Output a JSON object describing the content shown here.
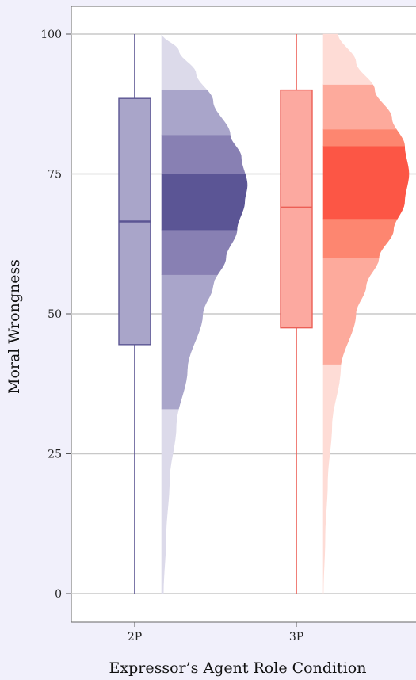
{
  "chart_data": {
    "type": "raincloud",
    "title": "",
    "xlabel": "Expressor’s Agent Role Condition",
    "ylabel": "Moral Wrongness",
    "ylim": [
      0,
      100
    ],
    "yticks": [
      0,
      25,
      50,
      75,
      100
    ],
    "grid": "horizontal",
    "legend": "none",
    "categories": [
      "2P",
      "3P"
    ],
    "series": [
      {
        "category": "2P",
        "colors": {
          "box_fill": "#a9a5c9",
          "box_stroke": "#5b5593",
          "band_outer": "#dcdaea",
          "band_mid": "#a9a5ca",
          "band_inner": "#8880b3",
          "band_core": "#5b5595"
        },
        "box": {
          "min": 0,
          "q1": 44.5,
          "median": 66.5,
          "q3": 88.5,
          "max": 100
        },
        "density": [
          [
            0,
            0.02
          ],
          [
            10,
            0.05
          ],
          [
            20,
            0.09
          ],
          [
            30,
            0.17
          ],
          [
            40,
            0.3
          ],
          [
            50,
            0.48
          ],
          [
            55,
            0.6
          ],
          [
            60,
            0.75
          ],
          [
            65,
            0.88
          ],
          [
            70,
            0.97
          ],
          [
            73,
            1.0
          ],
          [
            78,
            0.93
          ],
          [
            82,
            0.8
          ],
          [
            88,
            0.6
          ],
          [
            93,
            0.4
          ],
          [
            97,
            0.2
          ],
          [
            100,
            0.0
          ]
        ],
        "bands": [
          {
            "from": 0,
            "to": 33,
            "level": "outer"
          },
          {
            "from": 33,
            "to": 57,
            "level": "mid"
          },
          {
            "from": 57,
            "to": 65,
            "level": "inner"
          },
          {
            "from": 65,
            "to": 75,
            "level": "core"
          },
          {
            "from": 75,
            "to": 82,
            "level": "inner"
          },
          {
            "from": 82,
            "to": 90,
            "level": "mid"
          },
          {
            "from": 90,
            "to": 100,
            "level": "outer"
          }
        ]
      },
      {
        "category": "3P",
        "colors": {
          "box_fill": "#fca9a0",
          "box_stroke": "#ec5f56",
          "band_outer": "#fedcd6",
          "band_mid": "#fdaa9c",
          "band_inner": "#fd8670",
          "band_core": "#fc5645"
        },
        "box": {
          "min": 0,
          "q1": 47.5,
          "median": 69,
          "q3": 90,
          "max": 100
        },
        "density": [
          [
            0,
            0.0
          ],
          [
            10,
            0.02
          ],
          [
            20,
            0.05
          ],
          [
            30,
            0.1
          ],
          [
            40,
            0.2
          ],
          [
            50,
            0.38
          ],
          [
            55,
            0.5
          ],
          [
            60,
            0.65
          ],
          [
            65,
            0.82
          ],
          [
            70,
            0.95
          ],
          [
            75,
            1.0
          ],
          [
            80,
            0.95
          ],
          [
            85,
            0.8
          ],
          [
            90,
            0.6
          ],
          [
            95,
            0.38
          ],
          [
            100,
            0.17
          ]
        ],
        "bands": [
          {
            "from": 0,
            "to": 41,
            "level": "outer"
          },
          {
            "from": 41,
            "to": 60,
            "level": "mid"
          },
          {
            "from": 60,
            "to": 67,
            "level": "inner"
          },
          {
            "from": 67,
            "to": 80,
            "level": "core"
          },
          {
            "from": 80,
            "to": 83,
            "level": "inner"
          },
          {
            "from": 83,
            "to": 91,
            "level": "mid"
          },
          {
            "from": 91,
            "to": 100,
            "level": "outer"
          }
        ]
      }
    ]
  }
}
